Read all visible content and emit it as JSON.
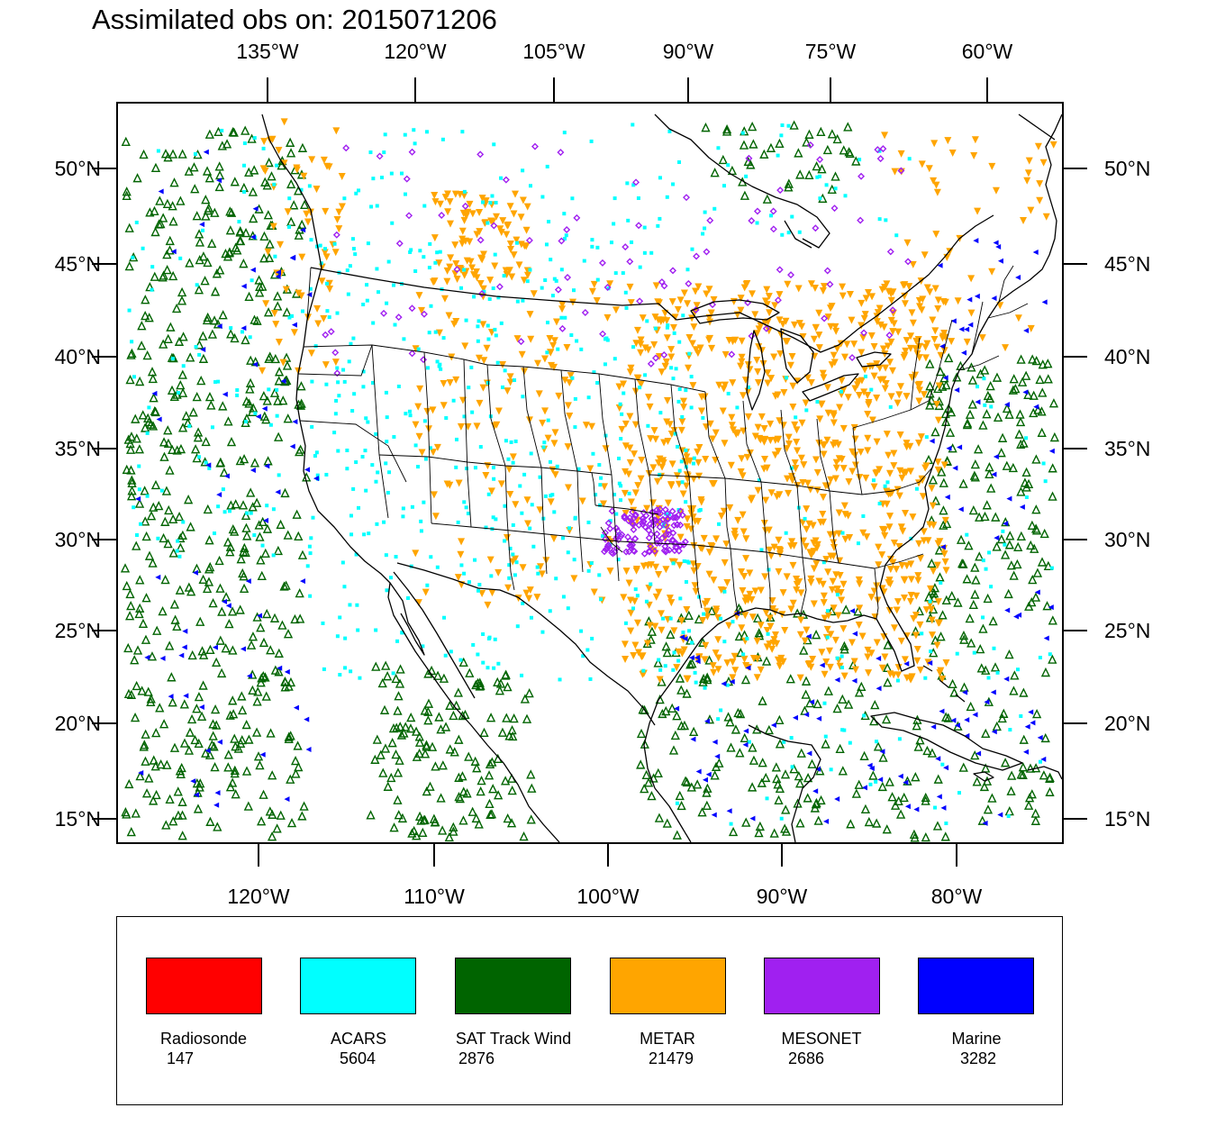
{
  "title": "Assimilated obs on: 2015071206",
  "top_lon_labels": [
    "135°W",
    "120°W",
    "105°W",
    "90°W",
    "75°W",
    "60°W"
  ],
  "bottom_lon_labels": [
    "120°W",
    "110°W",
    "100°W",
    "90°W",
    "80°W"
  ],
  "lat_labels": [
    "50°N",
    "45°N",
    "40°N",
    "35°N",
    "30°N",
    "25°N",
    "20°N",
    "15°N"
  ],
  "legend": [
    {
      "name": "Radiosonde",
      "count": "147",
      "color": "#ff0000"
    },
    {
      "name": "ACARS",
      "count": "5604",
      "color": "#00ffff"
    },
    {
      "name": "SAT Track Wind",
      "count": "2876",
      "color": "#006400"
    },
    {
      "name": "METAR",
      "count": "21479",
      "color": "#ffa500"
    },
    {
      "name": "MESONET",
      "count": "2686",
      "color": "#a020f0"
    },
    {
      "name": "Marine",
      "count": "3282",
      "color": "#0000ff"
    }
  ],
  "map": {
    "projection": "lambert-conformal",
    "lat_range": [
      15,
      50
    ],
    "lon_range": [
      -130,
      -58
    ],
    "base_features": [
      "coastlines",
      "us-state-boundaries",
      "international-borders",
      "great-lakes"
    ]
  }
}
